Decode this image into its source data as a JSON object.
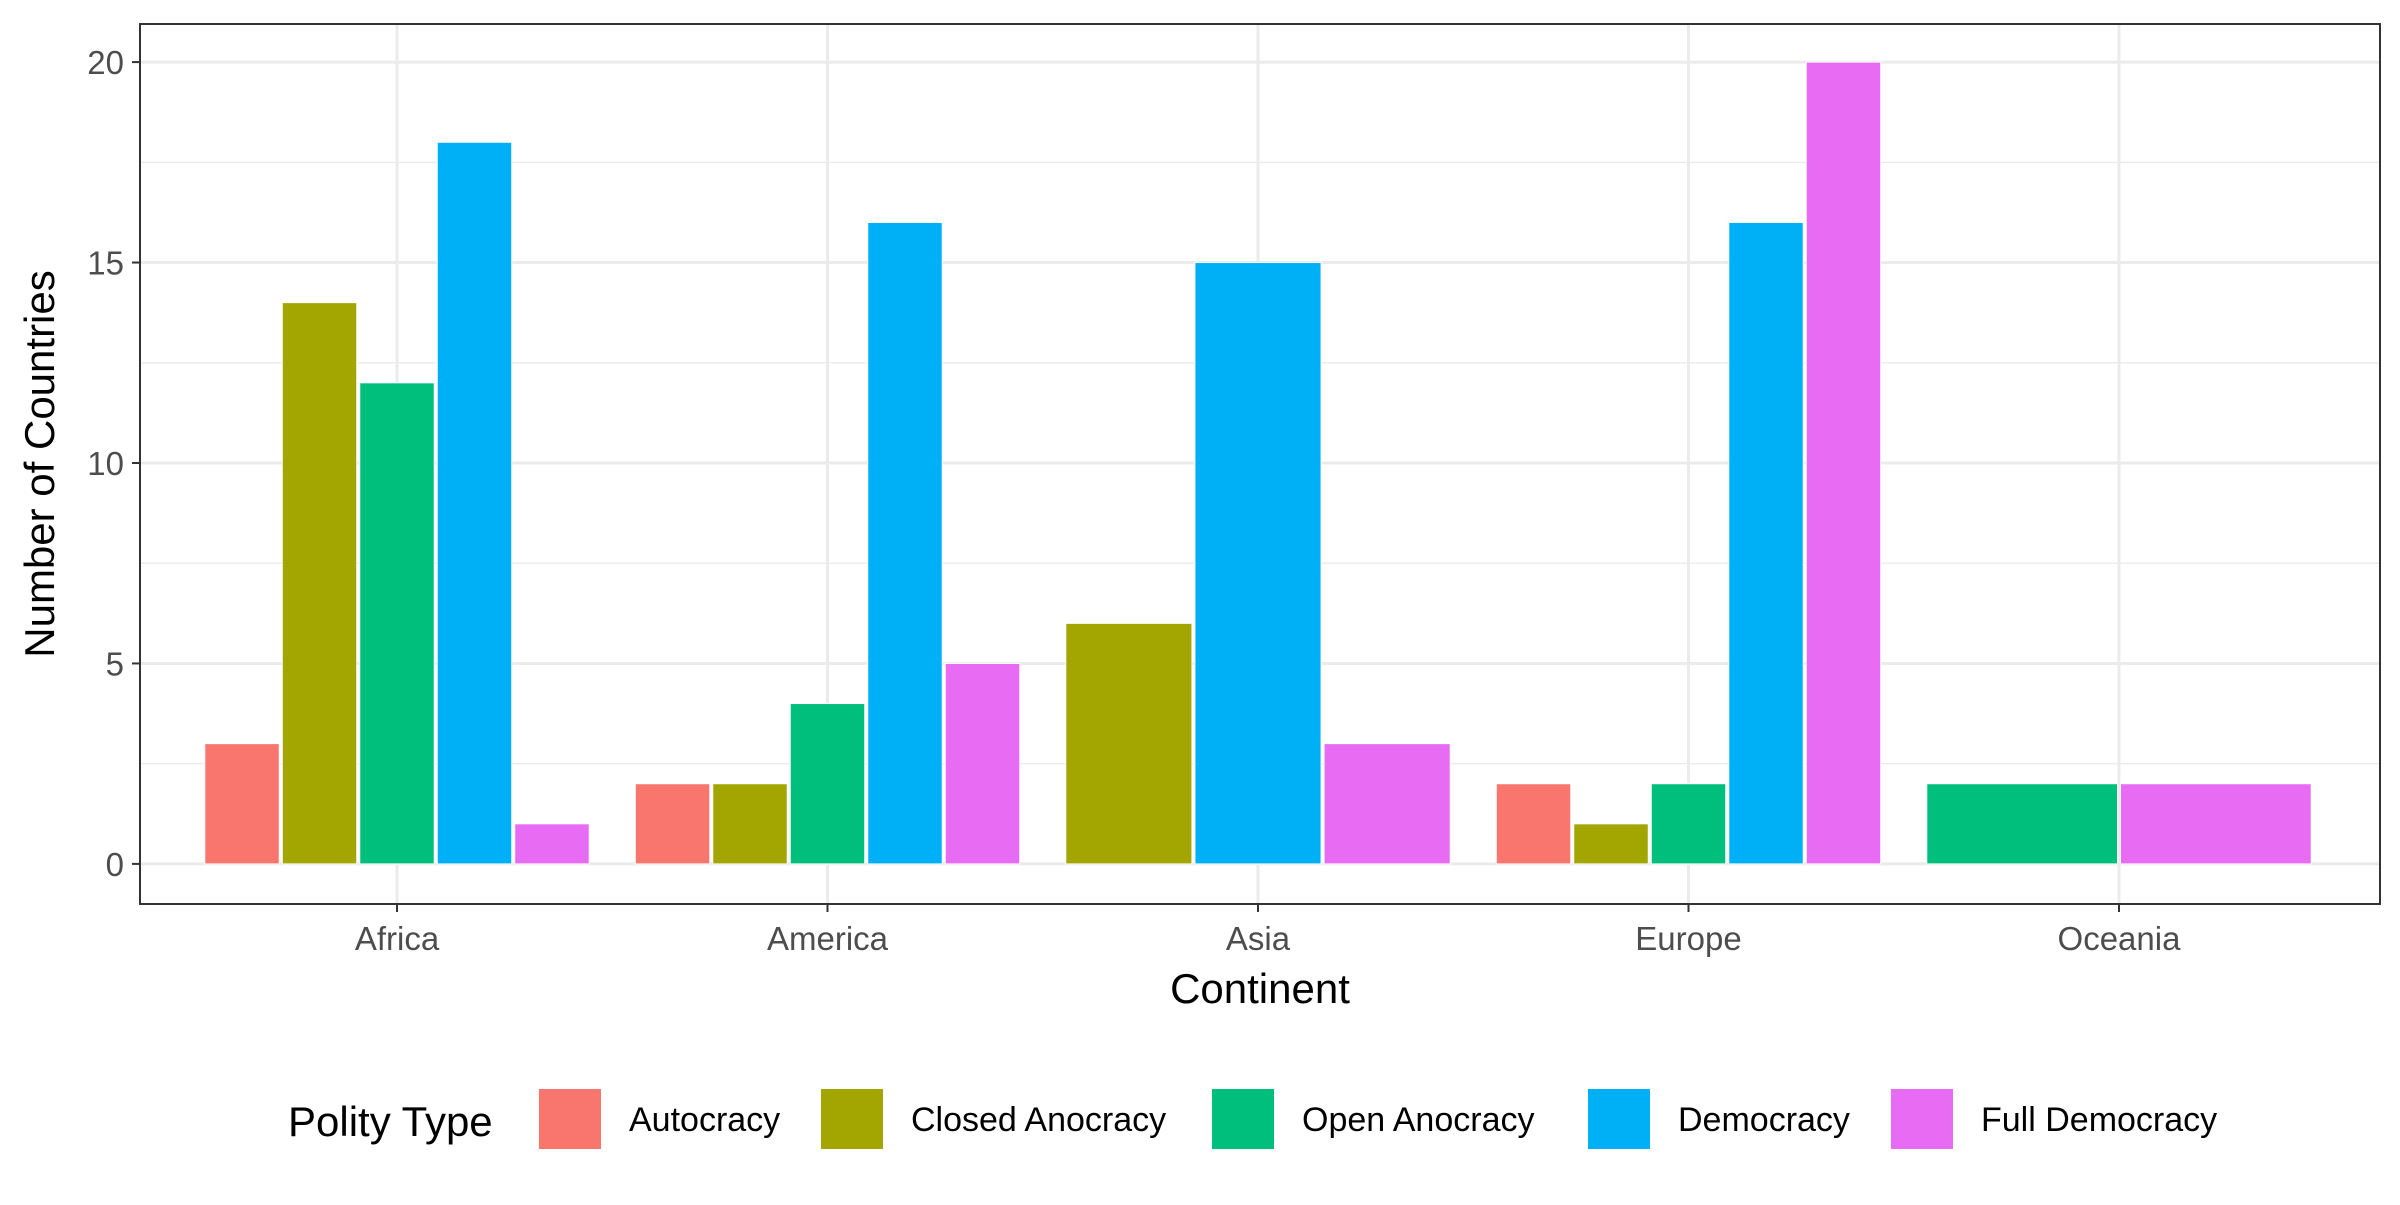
{
  "chart_data": {
    "type": "bar",
    "title": "",
    "xlabel": "Continent",
    "ylabel": "Number of Countries",
    "ylim": [
      -1,
      20.95
    ],
    "yticks": [
      0,
      5,
      10,
      15,
      20
    ],
    "grid": true,
    "categories": [
      "Africa",
      "America",
      "Asia",
      "Europe",
      "Oceania"
    ],
    "series": [
      {
        "name": "Autocracy",
        "color": "#F8766D",
        "values": [
          3,
          2,
          null,
          2,
          null
        ]
      },
      {
        "name": "Closed Anocracy",
        "color": "#A3A500",
        "values": [
          14,
          2,
          6,
          1,
          null
        ]
      },
      {
        "name": "Open Anocracy",
        "color": "#00BF7D",
        "values": [
          12,
          4,
          null,
          2,
          2
        ]
      },
      {
        "name": "Democracy",
        "color": "#00B0F6",
        "values": [
          18,
          16,
          15,
          16,
          null
        ]
      },
      {
        "name": "Full Democracy",
        "color": "#E76BF3",
        "values": [
          1,
          5,
          3,
          20,
          2
        ]
      }
    ],
    "legend": {
      "title": "Polity Type",
      "position": "bottom"
    }
  }
}
